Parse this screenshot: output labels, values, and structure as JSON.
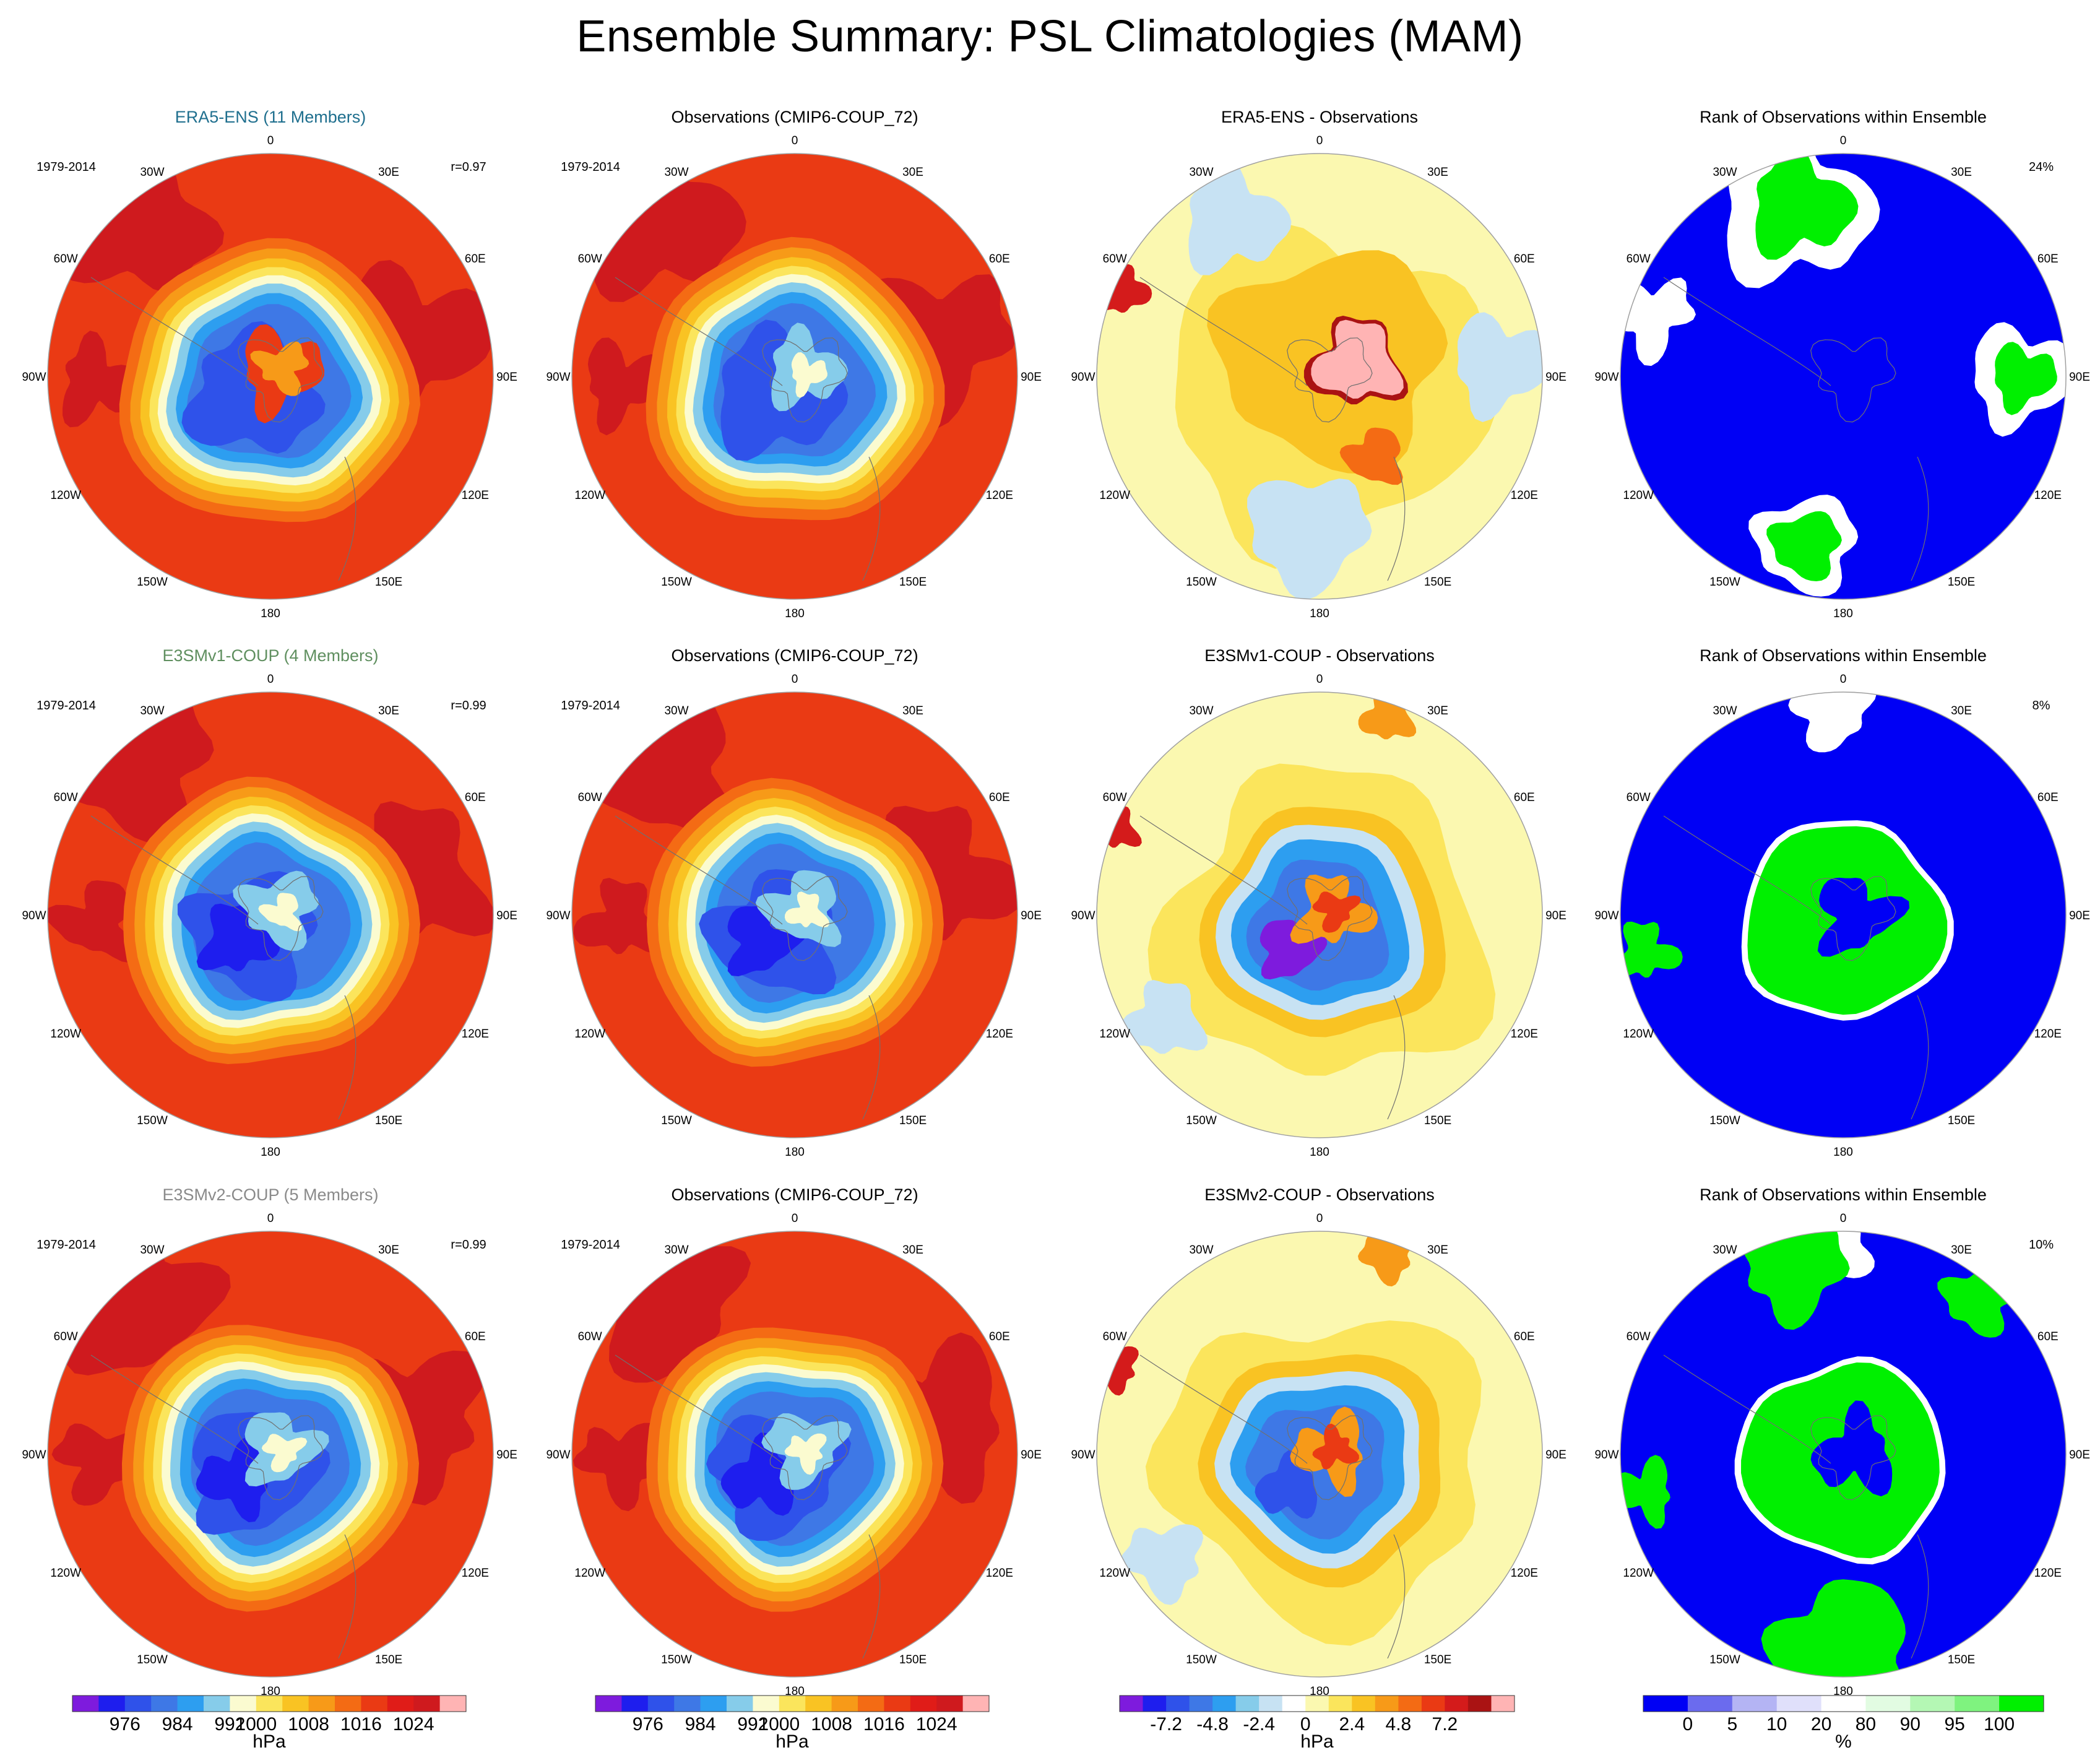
{
  "figure_title": "Ensemble Summary: PSL Climatologies (MAM)",
  "palettes": {
    "psl": [
      "#7e1bdd",
      "#1e1eee",
      "#2f52ea",
      "#3e78e6",
      "#2d9ef0",
      "#86ccea",
      "#fbfbd0",
      "#fbe55c",
      "#f9c323",
      "#f79a18",
      "#f46b14",
      "#ea3a14",
      "#e01c18",
      "#cf1a1e",
      "#ffb4b4"
    ],
    "diff": [
      "#7e1bdd",
      "#1e1eee",
      "#2f52ea",
      "#3e78e6",
      "#2d9ef0",
      "#86ccea",
      "#c7e2f3",
      "#ffffff",
      "#fbf8b0",
      "#fbe55c",
      "#f9c323",
      "#f79a18",
      "#f46b14",
      "#ea3a14",
      "#d41b1b",
      "#aa1313",
      "#ffb4b4"
    ],
    "rank": [
      "#0000f5",
      "#6b6bee",
      "#b4b4f4",
      "#e0e0fb",
      "#ffffff",
      "#e2fce2",
      "#b4f7b4",
      "#7ff37f",
      "#00f000"
    ]
  },
  "lon_labels": [
    "0",
    "30E",
    "60E",
    "90E",
    "120E",
    "150E",
    "180",
    "150W",
    "120W",
    "90W",
    "60W",
    "30W"
  ],
  "panels": [
    {
      "title": "ERA5-ENS (11 Members)",
      "title_color": "#1f6f8e",
      "corner_left": "1979-2014",
      "corner_right": "r=0.97",
      "kind": "psl"
    },
    {
      "title": "Observations (CMIP6-COUP_72)",
      "title_color": "#000000",
      "corner_left": "1979-2014",
      "corner_right": "",
      "kind": "psl"
    },
    {
      "title": "ERA5-ENS - Observations",
      "title_color": "#000000",
      "corner_left": "",
      "corner_right": "",
      "kind": "diff"
    },
    {
      "title": "Rank of Observations within Ensemble",
      "title_color": "#000000",
      "corner_left": "",
      "corner_right": "24%",
      "kind": "rank"
    },
    {
      "title": "E3SMv1-COUP (4 Members)",
      "title_color": "#5f8f5f",
      "corner_left": "1979-2014",
      "corner_right": "r=0.99",
      "kind": "psl"
    },
    {
      "title": "Observations (CMIP6-COUP_72)",
      "title_color": "#000000",
      "corner_left": "1979-2014",
      "corner_right": "",
      "kind": "psl"
    },
    {
      "title": "E3SMv1-COUP - Observations",
      "title_color": "#000000",
      "corner_left": "",
      "corner_right": "",
      "kind": "diff"
    },
    {
      "title": "Rank of Observations within Ensemble",
      "title_color": "#000000",
      "corner_left": "",
      "corner_right": "8%",
      "kind": "rank"
    },
    {
      "title": "E3SMv2-COUP (5 Members)",
      "title_color": "#8a8a8a",
      "corner_left": "1979-2014",
      "corner_right": "r=0.99",
      "kind": "psl"
    },
    {
      "title": "Observations (CMIP6-COUP_72)",
      "title_color": "#000000",
      "corner_left": "1979-2014",
      "corner_right": "",
      "kind": "psl"
    },
    {
      "title": "E3SMv2-COUP - Observations",
      "title_color": "#000000",
      "corner_left": "",
      "corner_right": "",
      "kind": "diff"
    },
    {
      "title": "Rank of Observations within Ensemble",
      "title_color": "#000000",
      "corner_left": "",
      "corner_right": "10%",
      "kind": "rank"
    }
  ],
  "colorbars": [
    {
      "palette": "psl",
      "ticks": [
        "976",
        "984",
        "992",
        "1000",
        "1008",
        "1016",
        "1024"
      ],
      "unit": "hPa"
    },
    {
      "palette": "psl",
      "ticks": [
        "976",
        "984",
        "992",
        "1000",
        "1008",
        "1016",
        "1024"
      ],
      "unit": "hPa"
    },
    {
      "palette": "diff",
      "ticks": [
        "-7.2",
        "-4.8",
        "-2.4",
        "0",
        "2.4",
        "4.8",
        "7.2"
      ],
      "unit": "hPa"
    },
    {
      "palette": "rank",
      "ticks": [
        "0",
        "5",
        "10",
        "20",
        "80",
        "90",
        "95",
        "100"
      ],
      "unit": "%"
    }
  ],
  "chart_data": [
    {
      "type": "heatmap",
      "projection": "south polar stereographic",
      "title": "ERA5-ENS (11 Members)",
      "period": "1979-2014",
      "pattern_correlation": 0.97,
      "units": "hPa",
      "contour_levels": [
        972,
        976,
        980,
        984,
        988,
        992,
        996,
        1000,
        1004,
        1008,
        1012,
        1016,
        1020,
        1024
      ]
    },
    {
      "type": "heatmap",
      "projection": "south polar stereographic",
      "title": "Observations (CMIP6-COUP_72)",
      "period": "1979-2014",
      "units": "hPa",
      "contour_levels": [
        972,
        976,
        980,
        984,
        988,
        992,
        996,
        1000,
        1004,
        1008,
        1012,
        1016,
        1020,
        1024
      ]
    },
    {
      "type": "heatmap",
      "projection": "south polar stereographic",
      "title": "ERA5-ENS - Observations",
      "units": "hPa",
      "contour_levels": [
        -8.4,
        -7.2,
        -6.0,
        -4.8,
        -3.6,
        -2.4,
        -1.2,
        0,
        1.2,
        2.4,
        3.6,
        4.8,
        6.0,
        7.2,
        8.4
      ]
    },
    {
      "type": "heatmap",
      "projection": "south polar stereographic",
      "title": "Rank of Observations within Ensemble",
      "units": "%",
      "area_outside_range_percent": 24,
      "levels": [
        0,
        5,
        10,
        20,
        80,
        90,
        95,
        100
      ]
    },
    {
      "type": "heatmap",
      "projection": "south polar stereographic",
      "title": "E3SMv1-COUP (4 Members)",
      "period": "1979-2014",
      "pattern_correlation": 0.99,
      "units": "hPa"
    },
    {
      "type": "heatmap",
      "projection": "south polar stereographic",
      "title": "Observations (CMIP6-COUP_72)",
      "period": "1979-2014",
      "units": "hPa"
    },
    {
      "type": "heatmap",
      "projection": "south polar stereographic",
      "title": "E3SMv1-COUP - Observations",
      "units": "hPa"
    },
    {
      "type": "heatmap",
      "projection": "south polar stereographic",
      "title": "Rank of Observations within Ensemble",
      "units": "%",
      "area_outside_range_percent": 8
    },
    {
      "type": "heatmap",
      "projection": "south polar stereographic",
      "title": "E3SMv2-COUP (5 Members)",
      "period": "1979-2014",
      "pattern_correlation": 0.99,
      "units": "hPa"
    },
    {
      "type": "heatmap",
      "projection": "south polar stereographic",
      "title": "Observations (CMIP6-COUP_72)",
      "period": "1979-2014",
      "units": "hPa"
    },
    {
      "type": "heatmap",
      "projection": "south polar stereographic",
      "title": "E3SMv2-COUP - Observations",
      "units": "hPa"
    },
    {
      "type": "heatmap",
      "projection": "south polar stereographic",
      "title": "Rank of Observations within Ensemble",
      "units": "%",
      "area_outside_range_percent": 10
    }
  ]
}
